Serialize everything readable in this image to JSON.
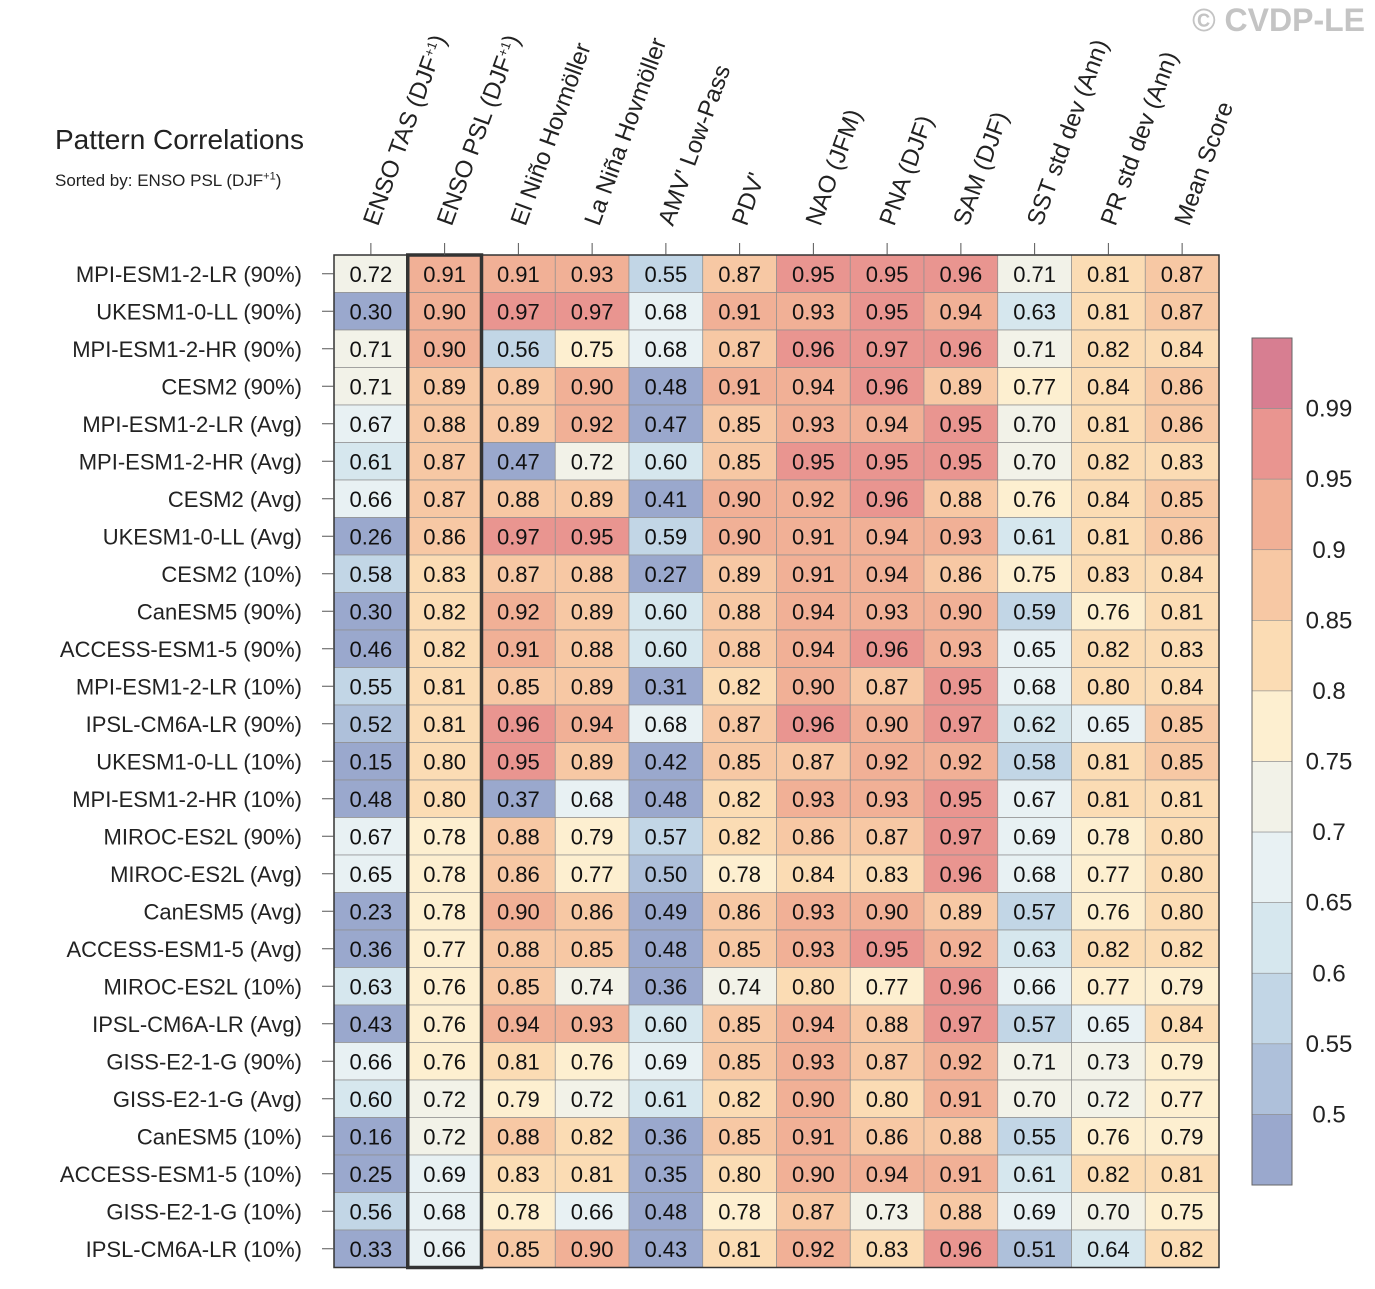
{
  "watermark": "© CVDP-LE",
  "title": "Pattern Correlations",
  "subtitle": "Sorted by: ENSO PSL (DJF+1)",
  "chart_data": {
    "type": "heatmap",
    "highlighted_column": "ENSO PSL (DJF+1)",
    "columns": [
      "ENSO TAS (DJF+1)",
      "ENSO PSL (DJF+1)",
      "El Niño Hovmöller",
      "La Niña Hovmöller",
      "AMV' Low-Pass",
      "PDV'",
      "NAO (JFM)",
      "PNA (DJF)",
      "SAM (DJF)",
      "SST std dev (Ann)",
      "PR std dev (Ann)",
      "Mean Score"
    ],
    "rows": [
      "MPI-ESM1-2-LR (90%)",
      "UKESM1-0-LL (90%)",
      "MPI-ESM1-2-HR (90%)",
      "CESM2 (90%)",
      "MPI-ESM1-2-LR (Avg)",
      "MPI-ESM1-2-HR (Avg)",
      "CESM2 (Avg)",
      "UKESM1-0-LL (Avg)",
      "CESM2 (10%)",
      "CanESM5 (90%)",
      "ACCESS-ESM1-5 (90%)",
      "MPI-ESM1-2-LR (10%)",
      "IPSL-CM6A-LR (90%)",
      "UKESM1-0-LL (10%)",
      "MPI-ESM1-2-HR (10%)",
      "MIROC-ES2L (90%)",
      "MIROC-ES2L (Avg)",
      "CanESM5 (Avg)",
      "ACCESS-ESM1-5 (Avg)",
      "MIROC-ES2L (10%)",
      "IPSL-CM6A-LR (Avg)",
      "GISS-E2-1-G (90%)",
      "GISS-E2-1-G (Avg)",
      "CanESM5 (10%)",
      "ACCESS-ESM1-5 (10%)",
      "GISS-E2-1-G (10%)",
      "IPSL-CM6A-LR (10%)"
    ],
    "values": [
      [
        "0.72",
        "0.91",
        "0.91",
        "0.93",
        "0.55",
        "0.87",
        "0.95",
        "0.95",
        "0.96",
        "0.71",
        "0.81",
        "0.87"
      ],
      [
        "0.30",
        "0.90",
        "0.97",
        "0.97",
        "0.68",
        "0.91",
        "0.93",
        "0.95",
        "0.94",
        "0.63",
        "0.81",
        "0.87"
      ],
      [
        "0.71",
        "0.90",
        "0.56",
        "0.75",
        "0.68",
        "0.87",
        "0.96",
        "0.97",
        "0.96",
        "0.71",
        "0.82",
        "0.84"
      ],
      [
        "0.71",
        "0.89",
        "0.89",
        "0.90",
        "0.48",
        "0.91",
        "0.94",
        "0.96",
        "0.89",
        "0.77",
        "0.84",
        "0.86"
      ],
      [
        "0.67",
        "0.88",
        "0.89",
        "0.92",
        "0.47",
        "0.85",
        "0.93",
        "0.94",
        "0.95",
        "0.70",
        "0.81",
        "0.86"
      ],
      [
        "0.61",
        "0.87",
        "0.47",
        "0.72",
        "0.60",
        "0.85",
        "0.95",
        "0.95",
        "0.95",
        "0.70",
        "0.82",
        "0.83"
      ],
      [
        "0.66",
        "0.87",
        "0.88",
        "0.89",
        "0.41",
        "0.90",
        "0.92",
        "0.96",
        "0.88",
        "0.76",
        "0.84",
        "0.85"
      ],
      [
        "0.26",
        "0.86",
        "0.97",
        "0.95",
        "0.59",
        "0.90",
        "0.91",
        "0.94",
        "0.93",
        "0.61",
        "0.81",
        "0.86"
      ],
      [
        "0.58",
        "0.83",
        "0.87",
        "0.88",
        "0.27",
        "0.89",
        "0.91",
        "0.94",
        "0.86",
        "0.75",
        "0.83",
        "0.84"
      ],
      [
        "0.30",
        "0.82",
        "0.92",
        "0.89",
        "0.60",
        "0.88",
        "0.94",
        "0.93",
        "0.90",
        "0.59",
        "0.76",
        "0.81"
      ],
      [
        "0.46",
        "0.82",
        "0.91",
        "0.88",
        "0.60",
        "0.88",
        "0.94",
        "0.96",
        "0.93",
        "0.65",
        "0.82",
        "0.83"
      ],
      [
        "0.55",
        "0.81",
        "0.85",
        "0.89",
        "0.31",
        "0.82",
        "0.90",
        "0.87",
        "0.95",
        "0.68",
        "0.80",
        "0.84"
      ],
      [
        "0.52",
        "0.81",
        "0.96",
        "0.94",
        "0.68",
        "0.87",
        "0.96",
        "0.90",
        "0.97",
        "0.62",
        "0.65",
        "0.85"
      ],
      [
        "0.15",
        "0.80",
        "0.95",
        "0.89",
        "0.42",
        "0.85",
        "0.87",
        "0.92",
        "0.92",
        "0.58",
        "0.81",
        "0.85"
      ],
      [
        "0.48",
        "0.80",
        "0.37",
        "0.68",
        "0.48",
        "0.82",
        "0.93",
        "0.93",
        "0.95",
        "0.67",
        "0.81",
        "0.81"
      ],
      [
        "0.67",
        "0.78",
        "0.88",
        "0.79",
        "0.57",
        "0.82",
        "0.86",
        "0.87",
        "0.97",
        "0.69",
        "0.78",
        "0.80"
      ],
      [
        "0.65",
        "0.78",
        "0.86",
        "0.77",
        "0.50",
        "0.78",
        "0.84",
        "0.83",
        "0.96",
        "0.68",
        "0.77",
        "0.80"
      ],
      [
        "0.23",
        "0.78",
        "0.90",
        "0.86",
        "0.49",
        "0.86",
        "0.93",
        "0.90",
        "0.89",
        "0.57",
        "0.76",
        "0.80"
      ],
      [
        "0.36",
        "0.77",
        "0.88",
        "0.85",
        "0.48",
        "0.85",
        "0.93",
        "0.95",
        "0.92",
        "0.63",
        "0.82",
        "0.82"
      ],
      [
        "0.63",
        "0.76",
        "0.85",
        "0.74",
        "0.36",
        "0.74",
        "0.80",
        "0.77",
        "0.96",
        "0.66",
        "0.77",
        "0.79"
      ],
      [
        "0.43",
        "0.76",
        "0.94",
        "0.93",
        "0.60",
        "0.85",
        "0.94",
        "0.88",
        "0.97",
        "0.57",
        "0.65",
        "0.84"
      ],
      [
        "0.66",
        "0.76",
        "0.81",
        "0.76",
        "0.69",
        "0.85",
        "0.93",
        "0.87",
        "0.92",
        "0.71",
        "0.73",
        "0.79"
      ],
      [
        "0.60",
        "0.72",
        "0.79",
        "0.72",
        "0.61",
        "0.82",
        "0.90",
        "0.80",
        "0.91",
        "0.70",
        "0.72",
        "0.77"
      ],
      [
        "0.16",
        "0.72",
        "0.88",
        "0.82",
        "0.36",
        "0.85",
        "0.91",
        "0.86",
        "0.88",
        "0.55",
        "0.76",
        "0.79"
      ],
      [
        "0.25",
        "0.69",
        "0.83",
        "0.81",
        "0.35",
        "0.80",
        "0.90",
        "0.94",
        "0.91",
        "0.61",
        "0.82",
        "0.81"
      ],
      [
        "0.56",
        "0.68",
        "0.78",
        "0.66",
        "0.48",
        "0.78",
        "0.87",
        "0.73",
        "0.88",
        "0.69",
        "0.70",
        "0.75"
      ],
      [
        "0.33",
        "0.66",
        "0.85",
        "0.90",
        "0.43",
        "0.81",
        "0.92",
        "0.83",
        "0.96",
        "0.51",
        "0.64",
        "0.82"
      ]
    ],
    "colorbar": {
      "tick_labels": [
        "0.5",
        "0.55",
        "0.6",
        "0.65",
        "0.7",
        "0.75",
        "0.8",
        "0.85",
        "0.9",
        "0.95",
        "0.99"
      ],
      "levels": [
        0.5,
        0.55,
        0.6,
        0.65,
        0.7,
        0.75,
        0.8,
        0.85,
        0.9,
        0.95,
        0.99
      ],
      "colors": [
        "#9aa8cd",
        "#aec0da",
        "#c2d6e6",
        "#d6e7ee",
        "#e8f1f3",
        "#f2f2e8",
        "#fdefd0",
        "#fbdcb4",
        "#f7c8a4",
        "#f1b096",
        "#e99590",
        "#d77e91"
      ]
    }
  }
}
